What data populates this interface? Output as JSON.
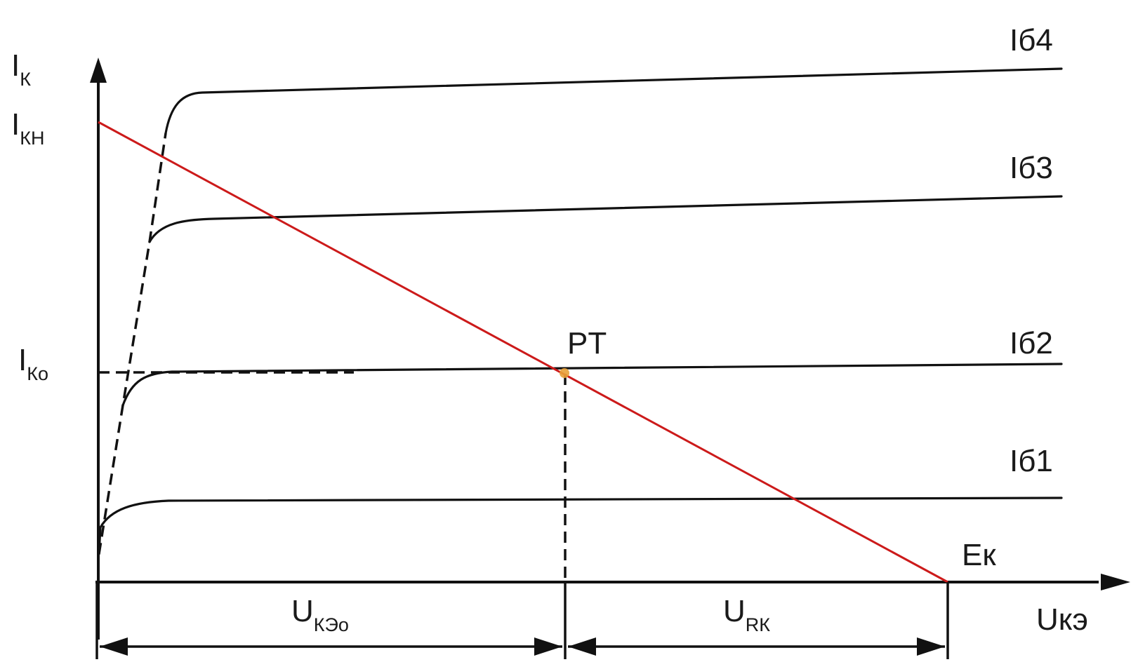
{
  "labels": {
    "y_axis_symbol": "I",
    "y_axis_sub": "К",
    "ikn_symbol": "I",
    "ikn_sub": "КН",
    "iko_symbol": "I",
    "iko_sub": "Ко",
    "x_axis": "Uкэ",
    "ek": "Eк",
    "pt": "PT",
    "uke_symbol": "U",
    "uke_sub": "КЭо",
    "urk_symbol": "U",
    "urk_sub": "RК"
  },
  "curves": [
    {
      "label": "Iб1"
    },
    {
      "label": "Iб2"
    },
    {
      "label": "Iб3"
    },
    {
      "label": "Iб4"
    }
  ],
  "colors": {
    "load_line": "#cc1a1a",
    "curves": "#111111",
    "operating_point": "#e8a23a"
  }
}
